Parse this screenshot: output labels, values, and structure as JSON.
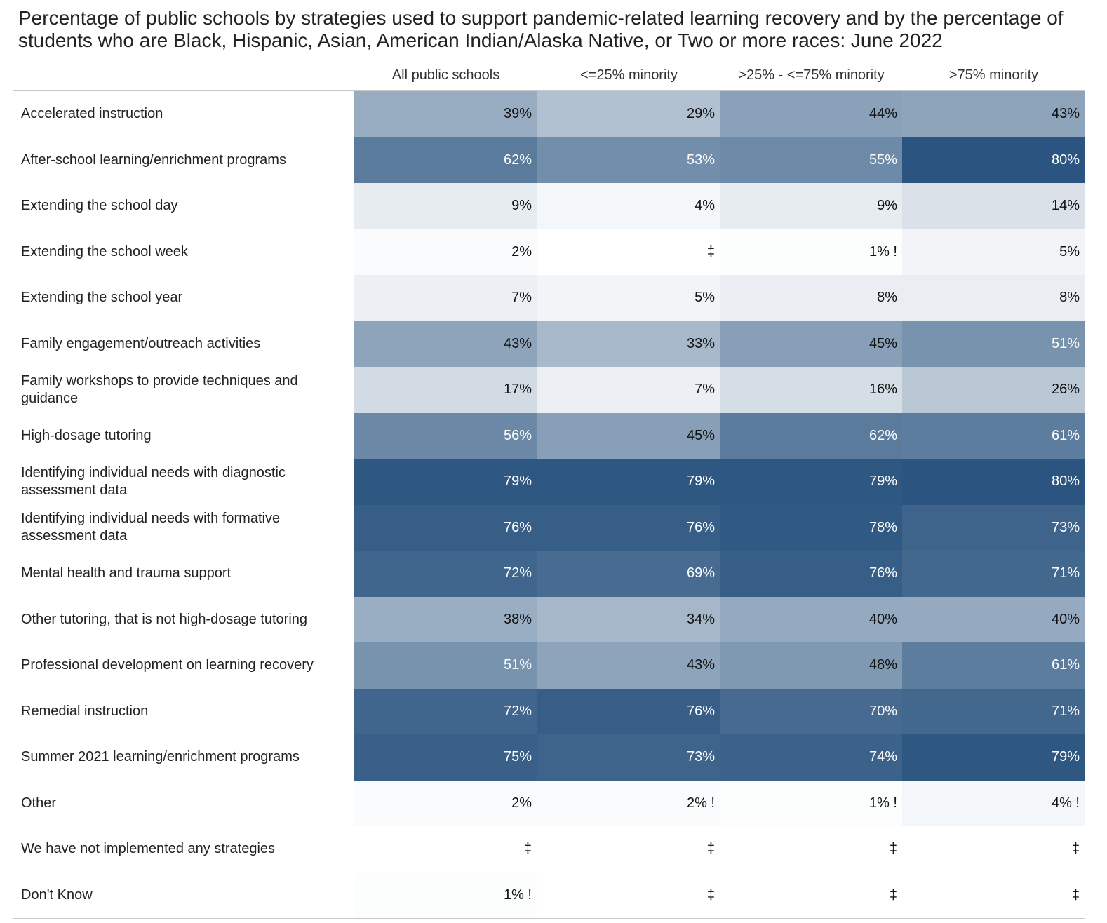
{
  "chart_data": {
    "type": "heatmap",
    "title": "Percentage of public schools by strategies used to support pandemic-related learning recovery and by the percentage of students who are Black, Hispanic, Asian, American Indian/Alaska Native, or Two or more races: June 2022",
    "columns": [
      "All public schools",
      "<=25% minority",
      ">25% - <=75% minority",
      ">75% minority"
    ],
    "color_scale": {
      "low": "#ffffff",
      "high": "#2b5580",
      "max_value": 80
    },
    "rows": [
      {
        "label": "Accelerated instruction",
        "cells": [
          "39%",
          "29%",
          "44%",
          "43%"
        ],
        "values": [
          39,
          29,
          44,
          43
        ]
      },
      {
        "label": "After-school learning/enrichment programs",
        "cells": [
          "62%",
          "53%",
          "55%",
          "80%"
        ],
        "values": [
          62,
          53,
          55,
          80
        ]
      },
      {
        "label": "Extending the school day",
        "cells": [
          "9%",
          "4%",
          "9%",
          "14%"
        ],
        "values": [
          9,
          4,
          9,
          14
        ]
      },
      {
        "label": "Extending the school week",
        "cells": [
          "2%",
          "‡",
          "1% !",
          "5%"
        ],
        "values": [
          2,
          null,
          1,
          5
        ]
      },
      {
        "label": "Extending the school year",
        "cells": [
          "7%",
          "5%",
          "8%",
          "8%"
        ],
        "values": [
          7,
          5,
          8,
          8
        ]
      },
      {
        "label": "Family engagement/outreach activities",
        "cells": [
          "43%",
          "33%",
          "45%",
          "51%"
        ],
        "values": [
          43,
          33,
          45,
          51
        ]
      },
      {
        "label": "Family workshops to provide techniques and guidance",
        "cells": [
          "17%",
          "7%",
          "16%",
          "26%"
        ],
        "values": [
          17,
          7,
          16,
          26
        ]
      },
      {
        "label": "High-dosage tutoring",
        "cells": [
          "56%",
          "45%",
          "62%",
          "61%"
        ],
        "values": [
          56,
          45,
          62,
          61
        ]
      },
      {
        "label": "Identifying individual needs with diagnostic assessment data",
        "cells": [
          "79%",
          "79%",
          "79%",
          "80%"
        ],
        "values": [
          79,
          79,
          79,
          80
        ]
      },
      {
        "label": "Identifying individual needs with formative assessment data",
        "cells": [
          "76%",
          "76%",
          "78%",
          "73%"
        ],
        "values": [
          76,
          76,
          78,
          73
        ]
      },
      {
        "label": "Mental health and trauma support",
        "cells": [
          "72%",
          "69%",
          "76%",
          "71%"
        ],
        "values": [
          72,
          69,
          76,
          71
        ]
      },
      {
        "label": "Other tutoring, that is not high-dosage tutoring",
        "cells": [
          "38%",
          "34%",
          "40%",
          "40%"
        ],
        "values": [
          38,
          34,
          40,
          40
        ]
      },
      {
        "label": "Professional development on learning recovery",
        "cells": [
          "51%",
          "43%",
          "48%",
          "61%"
        ],
        "values": [
          51,
          43,
          48,
          61
        ]
      },
      {
        "label": "Remedial instruction",
        "cells": [
          "72%",
          "76%",
          "70%",
          "71%"
        ],
        "values": [
          72,
          76,
          70,
          71
        ]
      },
      {
        "label": "Summer 2021 learning/enrichment programs",
        "cells": [
          "75%",
          "73%",
          "74%",
          "79%"
        ],
        "values": [
          75,
          73,
          74,
          79
        ]
      },
      {
        "label": "Other",
        "cells": [
          "2%",
          "2% !",
          "1% !",
          "4% !"
        ],
        "values": [
          2,
          2,
          1,
          4
        ]
      },
      {
        "label": "We have not implemented any strategies",
        "cells": [
          "‡",
          "‡",
          "‡",
          "‡"
        ],
        "values": [
          null,
          null,
          null,
          null
        ]
      },
      {
        "label": "Don't Know",
        "cells": [
          "1% !",
          "‡",
          "‡",
          "‡"
        ],
        "values": [
          1,
          null,
          null,
          null
        ]
      }
    ]
  }
}
